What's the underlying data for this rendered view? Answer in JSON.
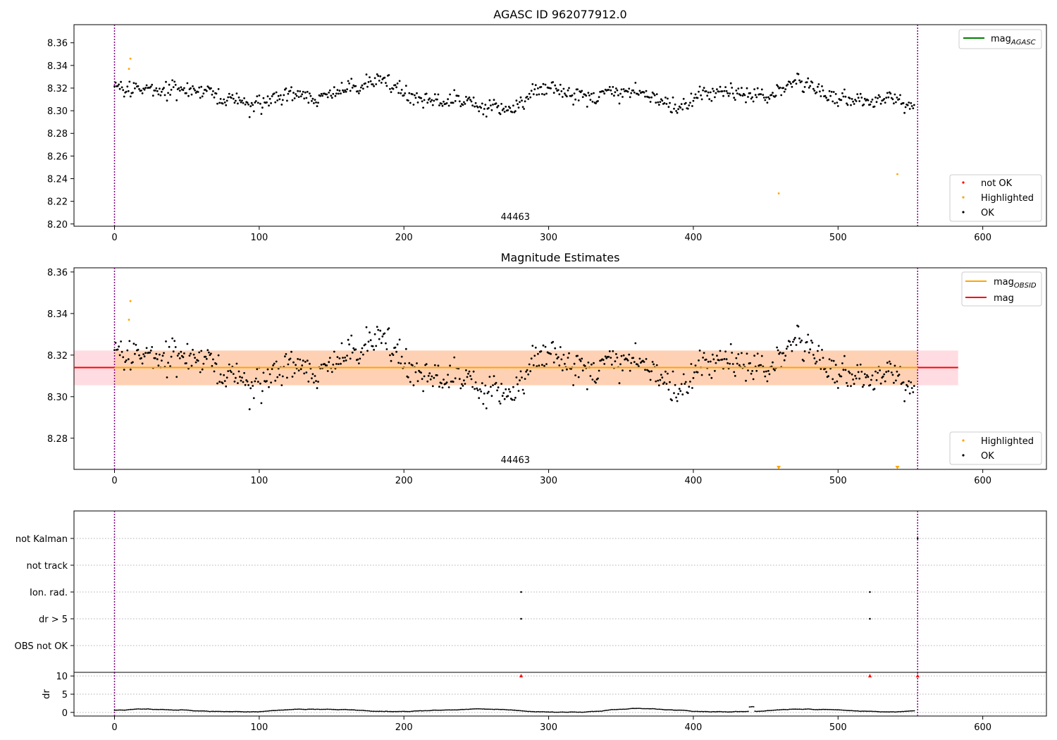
{
  "chart_data": [
    {
      "type": "scatter",
      "title": "AGASC ID 962077912.0",
      "xlim": [
        -28,
        644
      ],
      "ylim": [
        8.198,
        8.376
      ],
      "xticks": [
        "0",
        "100",
        "200",
        "300",
        "400",
        "500",
        "600"
      ],
      "yticks": [
        "8.20",
        "8.22",
        "8.24",
        "8.26",
        "8.28",
        "8.30",
        "8.32",
        "8.34",
        "8.36"
      ],
      "obsid_label": "44463",
      "obsid_label_x": 277,
      "obsid_boundaries": [
        0,
        555
      ],
      "legend_lines": [
        {
          "label": "mag",
          "subscript": "AGASC",
          "color": "#008000"
        }
      ],
      "legend_markers": [
        {
          "label": "not OK",
          "color": "#ff0000"
        },
        {
          "label": "Highlighted",
          "color": "#ffa500"
        },
        {
          "label": "OK",
          "color": "#000000"
        }
      ],
      "series": [
        {
          "name": "OK",
          "color": "#000000",
          "noise_seed": 7,
          "points_per_unit": 1.35,
          "x_start": 0,
          "x_end": 553
        },
        {
          "name": "Highlighted",
          "color": "#ffa500",
          "points": [
            [
              10,
              8.337
            ],
            [
              11,
              8.346
            ],
            [
              459,
              8.227
            ],
            [
              541,
              8.244
            ]
          ]
        }
      ]
    },
    {
      "type": "scatter",
      "title": "Magnitude Estimates",
      "xlim": [
        -28,
        644
      ],
      "ylim": [
        8.265,
        8.362
      ],
      "xticks": [
        "0",
        "100",
        "200",
        "300",
        "400",
        "500",
        "600"
      ],
      "yticks": [
        "8.28",
        "8.30",
        "8.32",
        "8.34",
        "8.36"
      ],
      "obsid_label": "44463",
      "obsid_label_x": 277,
      "obsid_boundaries": [
        0,
        555
      ],
      "mag": 8.314,
      "mag_band": [
        8.3055,
        8.3222
      ],
      "mag_band_x": [
        -28,
        583
      ],
      "obsid_band_x": [
        0,
        555
      ],
      "legend_lines": [
        {
          "label": "mag",
          "subscript": "OBSID",
          "color": "#ffa500"
        },
        {
          "label": "mag",
          "subscript": "",
          "color": "#ff0000"
        }
      ],
      "legend_markers": [
        {
          "label": "Highlighted",
          "color": "#ffa500"
        },
        {
          "label": "OK",
          "color": "#000000"
        }
      ],
      "series": [
        {
          "name": "OK",
          "color": "#000000",
          "noise_seed": 7,
          "points_per_unit": 1.35,
          "x_start": 0,
          "x_end": 553
        },
        {
          "name": "Highlighted",
          "color": "#ffa500",
          "points": [
            [
              10,
              8.337
            ],
            [
              11,
              8.346
            ]
          ],
          "offscale_x": [
            459,
            541
          ]
        }
      ]
    },
    {
      "type": "scatter",
      "title": "",
      "xlim": [
        -28,
        644
      ],
      "categories": [
        "not Kalman",
        "not track",
        "Ion. rad.",
        "dr > 5",
        "OBS not OK"
      ],
      "flags": [
        {
          "category": "Ion. rad.",
          "x": [
            281,
            522
          ]
        },
        {
          "category": "dr > 5",
          "x": [
            281,
            522
          ]
        },
        {
          "category": "not Kalman",
          "x": [
            555
          ]
        }
      ],
      "obsid_boundaries": [
        0,
        555
      ]
    },
    {
      "type": "line",
      "title": "",
      "ylabel": "dr",
      "xlim": [
        -28,
        644
      ],
      "ylim": [
        -1,
        11
      ],
      "xticks": [
        "0",
        "100",
        "200",
        "300",
        "400",
        "500",
        "600"
      ],
      "yticks": [
        "0",
        "5",
        "10"
      ],
      "dr_markers_x": [
        281,
        522,
        555
      ],
      "dr_marker_value": 10,
      "obsid_boundaries": [
        0,
        555
      ]
    }
  ]
}
